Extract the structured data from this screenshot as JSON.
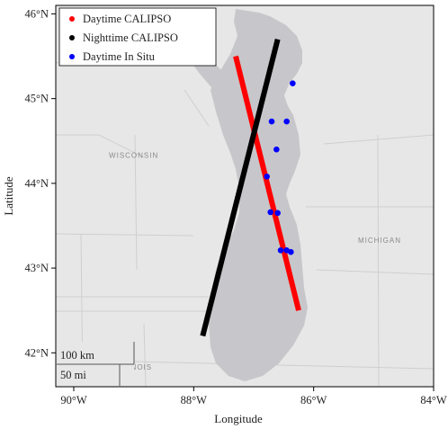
{
  "map": {
    "xlabel": "Longitude",
    "ylabel": "Latitude",
    "lon_range": [
      -90.3,
      -84.0
    ],
    "lat_range": [
      41.6,
      46.1
    ],
    "x_ticks": [
      {
        "lon": -90,
        "label": "90°W"
      },
      {
        "lon": -88,
        "label": "88°W"
      },
      {
        "lon": -86,
        "label": "86°W"
      },
      {
        "lon": -84,
        "label": "84°W"
      }
    ],
    "y_ticks": [
      {
        "lat": 42,
        "label": "42°N"
      },
      {
        "lat": 43,
        "label": "43°N"
      },
      {
        "lat": 44,
        "label": "44°N"
      },
      {
        "lat": 45,
        "label": "45°N"
      },
      {
        "lat": 46,
        "label": "46°N"
      }
    ],
    "place_labels": [
      {
        "text": "WISCONSIN",
        "lon": -89.0,
        "lat": 44.3
      },
      {
        "text": "MICHIGAN",
        "lon": -84.9,
        "lat": 43.3
      },
      {
        "text": "ILLINOIS",
        "lon": -89.0,
        "lat": 41.8
      }
    ],
    "scale_bar": {
      "km_label": "100 km",
      "mi_label": "50 mi"
    },
    "colors": {
      "land": "#e7e7e7",
      "water": "#c7c7cb",
      "daytime_calipso": "#ff0000",
      "nighttime_calipso": "#000000",
      "daytime_in_situ": "#0000ff"
    }
  },
  "legend": {
    "position": "top-left",
    "items": [
      {
        "label": "Daytime CALIPSO",
        "color": "#ff0000"
      },
      {
        "label": "Nighttime CALIPSO",
        "color": "#000000"
      },
      {
        "label": "Daytime In Situ",
        "color": "#0000ff"
      }
    ]
  },
  "tracks": [
    {
      "name": "Daytime CALIPSO",
      "color": "#ff0000",
      "points": [
        [
          -87.3,
          45.5
        ],
        [
          -86.25,
          42.5
        ]
      ]
    },
    {
      "name": "Nighttime CALIPSO",
      "color": "#000000",
      "points": [
        [
          -86.6,
          45.7
        ],
        [
          -87.85,
          42.2
        ]
      ]
    }
  ],
  "in_situ_points": [
    [
      -86.35,
      45.18
    ],
    [
      -86.7,
      44.73
    ],
    [
      -86.45,
      44.73
    ],
    [
      -86.62,
      44.4
    ],
    [
      -86.78,
      44.08
    ],
    [
      -86.72,
      43.66
    ],
    [
      -86.6,
      43.65
    ],
    [
      -86.55,
      43.21
    ],
    [
      -86.45,
      43.21
    ],
    [
      -86.38,
      43.19
    ]
  ]
}
